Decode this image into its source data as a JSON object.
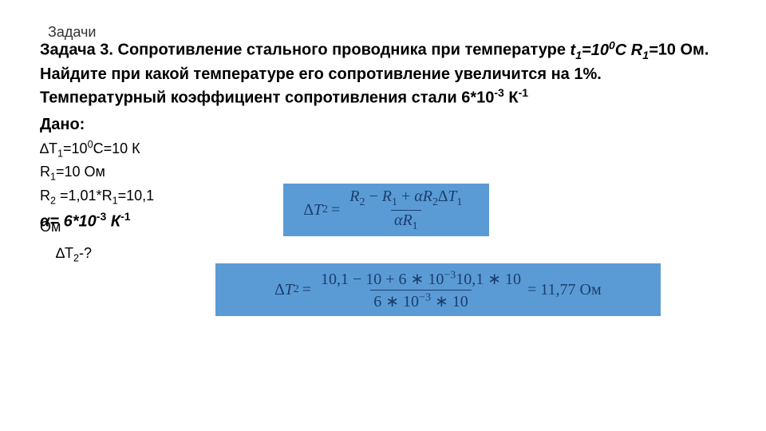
{
  "slide": {
    "title": "Задачи",
    "problem_text": "Задача 3. Сопротивление стального проводника при температуре t₁=10⁰C R₁=10 Ом. Найдите при какой температуре его сопротивление увеличится на 1%. Температурный коэффициент сопротивления стали 6*10⁻³ К⁻¹",
    "given_label": "Дано:",
    "given": {
      "line1": "∆T₁=10⁰C=10 К",
      "line2": "R₁=10 Ом",
      "line3": "R₂ =1,01*R₁=10,1",
      "alpha": "α= 6*10⁻³ К⁻¹",
      "om": "Ом"
    },
    "find": "∆T₂-?",
    "formula1": {
      "lhs": "∆T₂",
      "num": "R₂ − R₁ + αR₂∆T₁",
      "den": "αR₁"
    },
    "formula2": {
      "lhs": "∆T₂",
      "num": "10,1 − 10 + 6 ∗ 10⁻³10,1 ∗ 10",
      "den": "6 ∗ 10⁻³ ∗ 10",
      "result": "= 11,77 Ом"
    },
    "colors": {
      "box_bg": "#5b9bd5",
      "box_text": "#1a3e6e",
      "text": "#000000",
      "background": "#ffffff"
    }
  }
}
